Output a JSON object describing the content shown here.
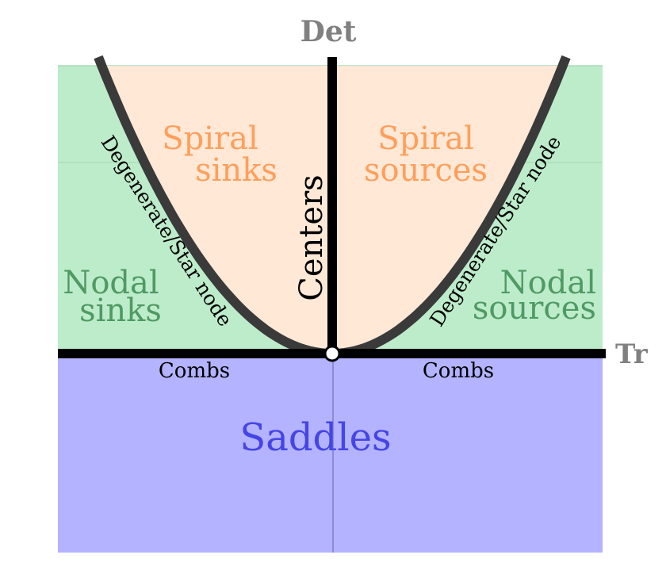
{
  "axes": {
    "y_label": "Det",
    "x_label": "Tr"
  },
  "regions": {
    "spiral_sinks": {
      "line1": "Spiral",
      "line2": "sinks"
    },
    "spiral_sources": {
      "line1": "Spiral",
      "line2": "sources"
    },
    "nodal_sinks": {
      "line1": "Nodal",
      "line2": "sinks"
    },
    "nodal_sources": {
      "line1": "Nodal",
      "line2": "sources"
    },
    "saddles": "Saddles"
  },
  "boundaries": {
    "centers": "Centers",
    "degenerate_left": "Degenerate/Star node",
    "degenerate_right": "Degenerate/Star node",
    "combs_left": "Combs",
    "combs_right": "Combs"
  },
  "colors": {
    "spiral_fill": "#ffe8d6",
    "spiral_text": "#ff9f5a",
    "nodal_fill": "#bdeccb",
    "nodal_text": "#4f9a63",
    "saddle_fill": "#b3b3ff",
    "saddle_text": "#4545e6",
    "axis_label": "#808080",
    "parabola": "#3a3a3a"
  }
}
